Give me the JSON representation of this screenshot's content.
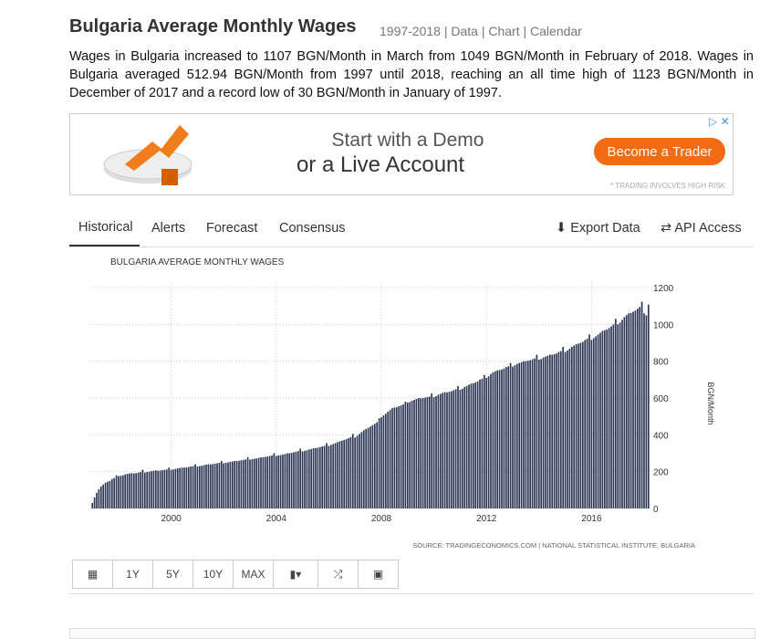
{
  "header": {
    "title": "Bulgaria Average Monthly Wages",
    "links": [
      "1997-2018",
      "Data",
      "Chart",
      "Calendar"
    ]
  },
  "summary": "Wages in Bulgaria increased to 1107 BGN/Month in March from 1049 BGN/Month in February of 2018. Wages in Bulgaria averaged 512.94 BGN/Month from 1997 until 2018, reaching an all time high of 1123 BGN/Month in December of 2017 and a record low of 30 BGN/Month in January of 1997.",
  "ad": {
    "line1": "Start with a Demo",
    "line2": "or a Live Account",
    "button": "Become a Trader",
    "disclaimer": "* TRADING INVOLVES HIGH RISK"
  },
  "tabs": [
    "Historical",
    "Alerts",
    "Forecast",
    "Consensus"
  ],
  "actions": [
    "Export Data",
    "API Access"
  ],
  "range_buttons": [
    "1Y",
    "5Y",
    "10Y",
    "MAX"
  ],
  "chart_data": {
    "type": "bar",
    "title": "BULGARIA AVERAGE MONTHLY WAGES",
    "y_label": "BGN/Month",
    "source": "SOURCE: TRADINGECONOMICS.COM | NATIONAL STATISTICAL INSTITUTE, BULGARIA",
    "color": "#2a3654",
    "grid": true,
    "ylim": [
      0,
      1200
    ],
    "yticks": [
      0,
      200,
      400,
      600,
      800,
      1000,
      1200
    ],
    "categories": [
      null,
      null,
      null,
      null,
      null,
      null,
      null,
      null,
      null,
      null,
      null,
      null,
      null,
      null,
      null,
      null,
      null,
      null,
      null,
      null,
      null,
      null,
      null,
      null,
      null,
      null,
      null,
      null,
      null,
      null,
      null,
      null,
      null,
      null,
      null,
      null,
      "2000",
      null,
      null,
      null,
      null,
      null,
      null,
      null,
      null,
      null,
      null,
      null,
      null,
      null,
      null,
      null,
      null,
      null,
      null,
      null,
      null,
      null,
      null,
      null,
      null,
      null,
      null,
      null,
      null,
      null,
      null,
      null,
      null,
      null,
      null,
      null,
      null,
      null,
      null,
      null,
      null,
      null,
      null,
      null,
      null,
      null,
      null,
      null,
      "2004",
      null,
      null,
      null,
      null,
      null,
      null,
      null,
      null,
      null,
      null,
      null,
      null,
      null,
      null,
      null,
      null,
      null,
      null,
      null,
      null,
      null,
      null,
      null,
      null,
      null,
      null,
      null,
      null,
      null,
      null,
      null,
      null,
      null,
      null,
      null,
      null,
      null,
      null,
      null,
      null,
      null,
      null,
      null,
      null,
      null,
      null,
      null,
      "2008",
      null,
      null,
      null,
      null,
      null,
      null,
      null,
      null,
      null,
      null,
      null,
      null,
      null,
      null,
      null,
      null,
      null,
      null,
      null,
      null,
      null,
      null,
      null,
      null,
      null,
      null,
      null,
      null,
      null,
      null,
      null,
      null,
      null,
      null,
      null,
      null,
      null,
      null,
      null,
      null,
      null,
      null,
      null,
      null,
      null,
      null,
      null,
      "2012",
      null,
      null,
      null,
      null,
      null,
      null,
      null,
      null,
      null,
      null,
      null,
      null,
      null,
      null,
      null,
      null,
      null,
      null,
      null,
      null,
      null,
      null,
      null,
      null,
      null,
      null,
      null,
      null,
      null,
      null,
      null,
      null,
      null,
      null,
      null,
      null,
      null,
      null,
      null,
      null,
      null,
      null,
      null,
      null,
      null,
      null,
      null,
      "2016",
      null,
      null,
      null,
      null,
      null,
      null,
      null,
      null,
      null,
      null,
      null,
      null,
      null,
      null,
      null,
      null,
      null,
      null,
      null,
      null,
      null,
      null,
      null,
      null,
      null,
      null
    ],
    "values": [
      30,
      60,
      85,
      105,
      120,
      130,
      140,
      145,
      150,
      160,
      165,
      180,
      175,
      178,
      180,
      185,
      188,
      190,
      192,
      190,
      192,
      195,
      198,
      210,
      195,
      198,
      200,
      203,
      205,
      207,
      205,
      206,
      208,
      210,
      212,
      222,
      210,
      212,
      215,
      218,
      220,
      222,
      222,
      223,
      225,
      228,
      230,
      240,
      228,
      230,
      232,
      235,
      238,
      240,
      240,
      241,
      243,
      246,
      248,
      258,
      245,
      248,
      250,
      253,
      255,
      258,
      258,
      259,
      262,
      264,
      266,
      278,
      265,
      268,
      270,
      272,
      275,
      278,
      278,
      280,
      282,
      285,
      288,
      300,
      285,
      288,
      290,
      293,
      296,
      300,
      300,
      302,
      305,
      308,
      312,
      325,
      310,
      313,
      316,
      320,
      323,
      327,
      328,
      330,
      333,
      337,
      340,
      355,
      340,
      345,
      350,
      355,
      360,
      365,
      368,
      372,
      376,
      382,
      388,
      405,
      385,
      395,
      405,
      415,
      425,
      432,
      438,
      445,
      452,
      460,
      468,
      490,
      495,
      505,
      515,
      525,
      535,
      545,
      548,
      550,
      555,
      560,
      565,
      580,
      575,
      578,
      585,
      590,
      595,
      600,
      598,
      600,
      602,
      605,
      608,
      625,
      605,
      610,
      618,
      622,
      628,
      632,
      630,
      633,
      637,
      642,
      648,
      665,
      645,
      650,
      660,
      665,
      672,
      678,
      680,
      685,
      690,
      700,
      705,
      725,
      710,
      718,
      730,
      740,
      745,
      750,
      752,
      755,
      760,
      768,
      772,
      790,
      770,
      778,
      785,
      790,
      795,
      800,
      800,
      802,
      805,
      810,
      815,
      835,
      808,
      812,
      820,
      825,
      830,
      836,
      835,
      838,
      842,
      850,
      855,
      878,
      850,
      858,
      868,
      878,
      885,
      892,
      895,
      900,
      905,
      915,
      922,
      945,
      915,
      925,
      935,
      945,
      955,
      965,
      968,
      972,
      980,
      990,
      1000,
      1030,
      1000,
      1010,
      1025,
      1040,
      1050,
      1060,
      1062,
      1068,
      1075,
      1085,
      1095,
      1123,
      1060,
      1049,
      1107
    ]
  }
}
